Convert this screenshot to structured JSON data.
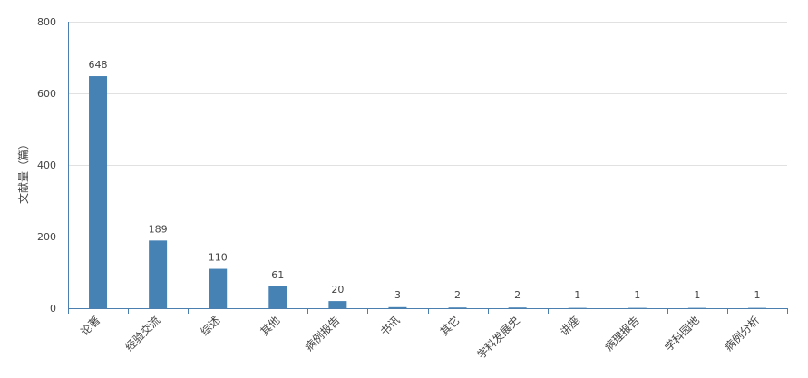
{
  "chart_data": {
    "type": "bar",
    "categories": [
      "论著",
      "经验交流",
      "综述",
      "其他",
      "病例报告",
      "书讯",
      "其它",
      "学科发展史",
      "讲座",
      "病理报告",
      "学科园地",
      "病例分析"
    ],
    "values": [
      648,
      189,
      110,
      61,
      20,
      3,
      2,
      2,
      1,
      1,
      1,
      1
    ],
    "data_labels": [
      "648",
      "189",
      "110",
      "61",
      "20",
      "3",
      "2",
      "2",
      "1",
      "1",
      "1",
      "1"
    ],
    "title": "",
    "xlabel": "",
    "ylabel": "文献量（篇）",
    "ylim": [
      0,
      800
    ],
    "yticks": [
      0,
      200,
      400,
      600,
      800
    ],
    "ytick_labels": [
      "0",
      "200",
      "400",
      "600",
      "800"
    ],
    "grid": true,
    "legend": "none",
    "bar_color": "#4682b4",
    "axis_color": "#4a7fb0",
    "grid_color": "#e1e1e1"
  }
}
